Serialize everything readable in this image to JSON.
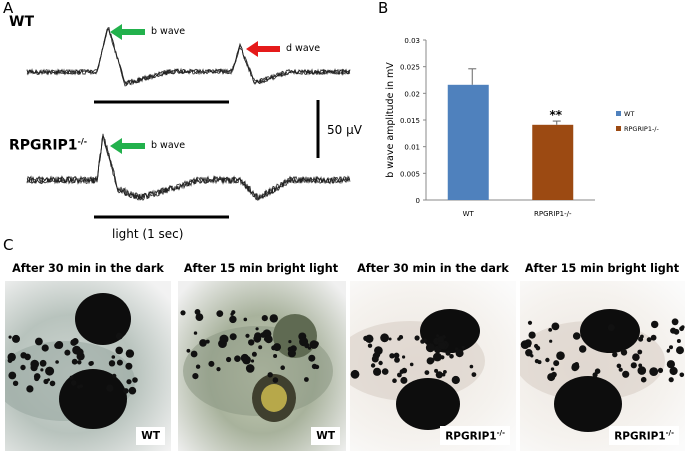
{
  "panels": {
    "a": "A",
    "b": "B",
    "c": "C"
  },
  "erg": {
    "wt_label": "WT",
    "mutant_label": "RPGRIP1",
    "mutant_sup": "-/-",
    "b_wave": "b wave",
    "d_wave": "d wave",
    "scale_bar": "50 μV",
    "light": "light (1 sec)"
  },
  "colors": {
    "green_arrow": "#22b14c",
    "red_arrow": "#e51a1a",
    "wt_bar": "#4f81bd",
    "mutant_bar": "#9c4a12"
  },
  "chart_data": {
    "type": "bar",
    "categories": [
      "WT",
      "RPGRIP1-/-"
    ],
    "values": [
      0.0216,
      0.0141
    ],
    "errors": [
      0.003,
      0.0007
    ],
    "significance": [
      "",
      "**"
    ],
    "ylabel": "b wave amplitude  in mV",
    "ylim": [
      0,
      0.03
    ],
    "yticks": [
      "0",
      "0.005",
      "0.01",
      "0.015",
      "0.02",
      "0.025",
      "0.03"
    ],
    "legend": [
      "WT",
      "RPGRIP1-/-"
    ],
    "legend_position": "right",
    "grid": false
  },
  "photos": [
    {
      "title": "After 30 min in the dark",
      "label": "WT"
    },
    {
      "title": "After 15 min bright light",
      "label": "WT"
    },
    {
      "title": "After 30 min in the dark",
      "label": "RPGRIP1",
      "sup": "-/-"
    },
    {
      "title": "After 15 min bright light",
      "label": "RPGRIP1",
      "sup": "-/-"
    }
  ]
}
